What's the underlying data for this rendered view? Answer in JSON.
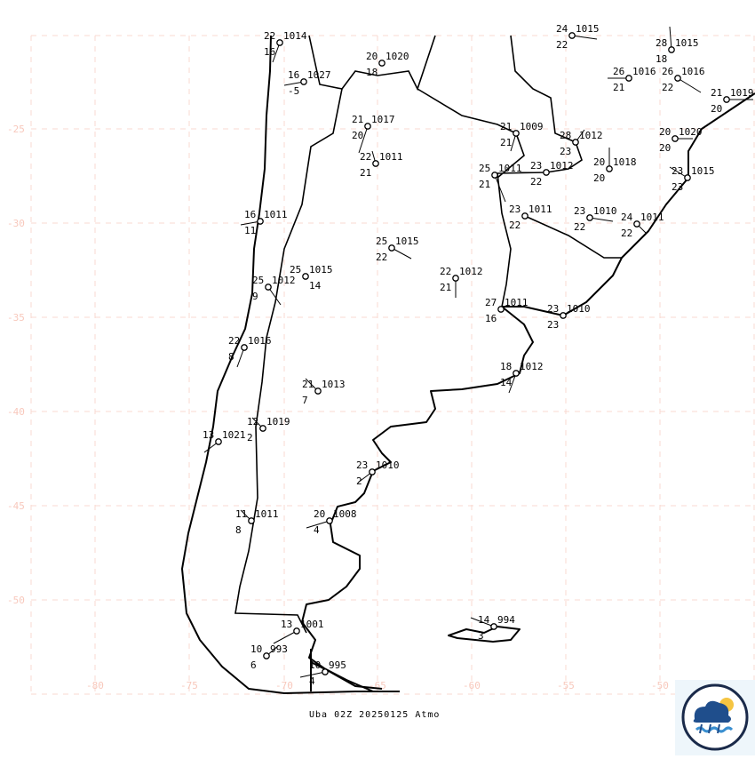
{
  "caption": "Uba 02Z 20250125 Atmo",
  "grid": {
    "lat_labels": [
      "-25",
      "-30",
      "-35",
      "-40",
      "-45",
      "-50"
    ],
    "lon_labels": [
      "-80",
      "-75",
      "-70",
      "-65",
      "-60",
      "-55",
      "-50"
    ],
    "color": "#f8d8d0"
  },
  "stations": [
    {
      "temp": "22",
      "pressure": "1014",
      "dew": "16"
    },
    {
      "temp": "16",
      "pressure": "1027",
      "dew": "-5"
    },
    {
      "temp": "20",
      "pressure": "1020",
      "dew": "18"
    },
    {
      "temp": "21",
      "pressure": "1017",
      "dew": "20"
    },
    {
      "temp": "22",
      "pressure": "1011",
      "dew": "21"
    },
    {
      "temp": "16",
      "pressure": "1011",
      "dew": "11"
    },
    {
      "temp": "25",
      "pressure": "1015",
      "dew": "22"
    },
    {
      "temp": "25",
      "pressure": "1015",
      "dew": "14"
    },
    {
      "temp": "25",
      "pressure": "1012",
      "dew": "9"
    },
    {
      "temp": "22",
      "pressure": "1012",
      "dew": "21"
    },
    {
      "temp": "21",
      "pressure": "1009",
      "dew": "21"
    },
    {
      "temp": "28",
      "pressure": "1012",
      "dew": "23"
    },
    {
      "temp": "25",
      "pressure": "1011",
      "dew": "21"
    },
    {
      "temp": "23",
      "pressure": "1012",
      "dew": "22"
    },
    {
      "temp": "20",
      "pressure": "1018",
      "dew": "20"
    },
    {
      "temp": "23",
      "pressure": "1011",
      "dew": "22"
    },
    {
      "temp": "23",
      "pressure": "1010",
      "dew": "22"
    },
    {
      "temp": "24",
      "pressure": "1011",
      "dew": "22"
    },
    {
      "temp": "24",
      "pressure": "1015",
      "dew": "22"
    },
    {
      "temp": "28",
      "pressure": "1015",
      "dew": "18"
    },
    {
      "temp": "26",
      "pressure": "1016",
      "dew": "21"
    },
    {
      "temp": "26",
      "pressure": "1016",
      "dew": "22"
    },
    {
      "temp": "21",
      "pressure": "1019",
      "dew": "20"
    },
    {
      "temp": "20",
      "pressure": "1020",
      "dew": "20"
    },
    {
      "temp": "23",
      "pressure": "1015",
      "dew": "23"
    },
    {
      "temp": "27",
      "pressure": "1011",
      "dew": "16"
    },
    {
      "temp": "23",
      "pressure": "1010",
      "dew": "23"
    },
    {
      "temp": "18",
      "pressure": "1012",
      "dew": "14"
    },
    {
      "temp": "22",
      "pressure": "1016",
      "dew": "8"
    },
    {
      "temp": "21",
      "pressure": "1013",
      "dew": "7"
    },
    {
      "temp": "13",
      "pressure": "1021",
      "dew": ""
    },
    {
      "temp": "12",
      "pressure": "1019",
      "dew": "2"
    },
    {
      "temp": "23",
      "pressure": "1010",
      "dew": "2"
    },
    {
      "temp": "11",
      "pressure": "1011",
      "dew": "8"
    },
    {
      "temp": "20",
      "pressure": "1008",
      "dew": "4"
    },
    {
      "temp": "13",
      "pressure": "1001",
      "dew": ""
    },
    {
      "temp": "10",
      "pressure": "993",
      "dew": "6"
    },
    {
      "temp": "10",
      "pressure": "995",
      "dew": "4"
    },
    {
      "temp": "14",
      "pressure": "994",
      "dew": "3"
    }
  ],
  "logo": {
    "icon": "weather-cloud-sun-rain-logo"
  }
}
